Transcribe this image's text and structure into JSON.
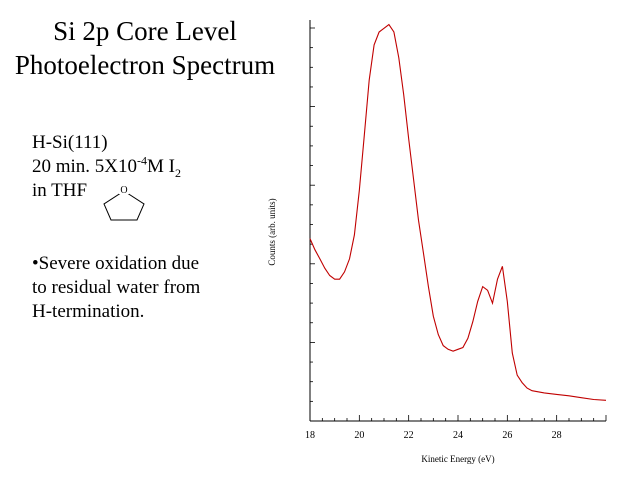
{
  "slide": {
    "title_line1": "Si 2p Core Level",
    "title_line2": "Photoelectron Spectrum",
    "sample_line1": "H-Si(111)",
    "sample_line2_prefix": "20 min. 5X10",
    "sample_line2_exp": "-4",
    "sample_line2_mid": "M I",
    "sample_line2_sub": "2",
    "sample_line3": "in THF",
    "molecule_atom": "O",
    "note_line1": "•Severe oxidation due",
    "note_line2": "to residual water from",
    "note_line3": "H-termination."
  },
  "chart_data": {
    "type": "line",
    "title": "",
    "xlabel": "Kinetic Energy (eV)",
    "ylabel": "Counts (arb. units)",
    "xlim": [
      18,
      30
    ],
    "ylim": [
      0,
      100
    ],
    "xticks": [
      "18",
      "20",
      "22",
      "24",
      "26",
      "28"
    ],
    "grid": false,
    "line_color": "#c00000",
    "series": [
      {
        "x": [
          18.0,
          18.2,
          18.4,
          18.6,
          18.8,
          19.0,
          19.2,
          19.4,
          19.6,
          19.8,
          20.0,
          20.2,
          20.4,
          20.6,
          20.8,
          21.0,
          21.2,
          21.4,
          21.6,
          21.8,
          22.0,
          22.2,
          22.4,
          22.6,
          22.8,
          23.0,
          23.2,
          23.4,
          23.6,
          23.8,
          24.0,
          24.2,
          24.4,
          24.6,
          24.8,
          25.0,
          25.2,
          25.4,
          25.6,
          25.8,
          26.0,
          26.2,
          26.4,
          26.6,
          26.8,
          27.0,
          27.5,
          28.0,
          28.5,
          29.0,
          29.5,
          30.0
        ],
        "y": [
          44,
          41,
          38.5,
          36,
          34,
          33,
          33,
          35,
          38.5,
          45,
          57,
          72,
          87,
          96.5,
          100,
          101,
          102,
          100,
          93,
          83,
          71,
          60,
          49,
          40,
          31,
          23,
          18,
          15,
          14,
          13.5,
          14,
          14.5,
          17,
          21.5,
          27,
          31,
          30,
          26.5,
          33,
          36.5,
          27,
          13,
          7,
          5,
          3.5,
          2.8,
          2.2,
          1.8,
          1.4,
          0.9,
          0.4,
          0.2
        ]
      }
    ]
  }
}
